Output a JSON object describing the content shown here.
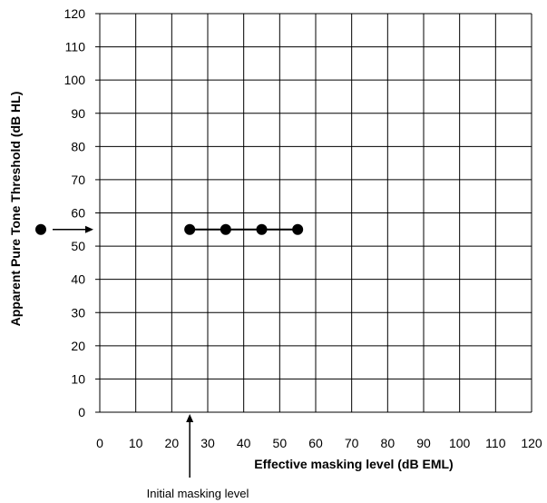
{
  "chart_data": {
    "type": "scatter",
    "xlabel": "Effective masking level (dB EML)",
    "ylabel": "Apparent Pure Tone Threshold (dB HL)",
    "xlim": [
      0,
      120
    ],
    "ylim": [
      0,
      120
    ],
    "xticks": [
      0,
      10,
      20,
      30,
      40,
      50,
      60,
      70,
      80,
      90,
      100,
      110,
      120
    ],
    "yticks": [
      0,
      10,
      20,
      30,
      40,
      50,
      60,
      70,
      80,
      90,
      100,
      110,
      120
    ],
    "grid": true,
    "series": [
      {
        "points": [
          {
            "x": 25,
            "y": 55
          },
          {
            "x": 35,
            "y": 55
          },
          {
            "x": 45,
            "y": 55
          },
          {
            "x": 55,
            "y": 55
          }
        ],
        "connected": true
      }
    ],
    "unmasked_threshold": {
      "y": 55
    },
    "initial_masking_marker": {
      "x": 25,
      "label": "Initial masking level"
    }
  },
  "colors": {
    "ink": "#000000",
    "grid": "#000000"
  }
}
